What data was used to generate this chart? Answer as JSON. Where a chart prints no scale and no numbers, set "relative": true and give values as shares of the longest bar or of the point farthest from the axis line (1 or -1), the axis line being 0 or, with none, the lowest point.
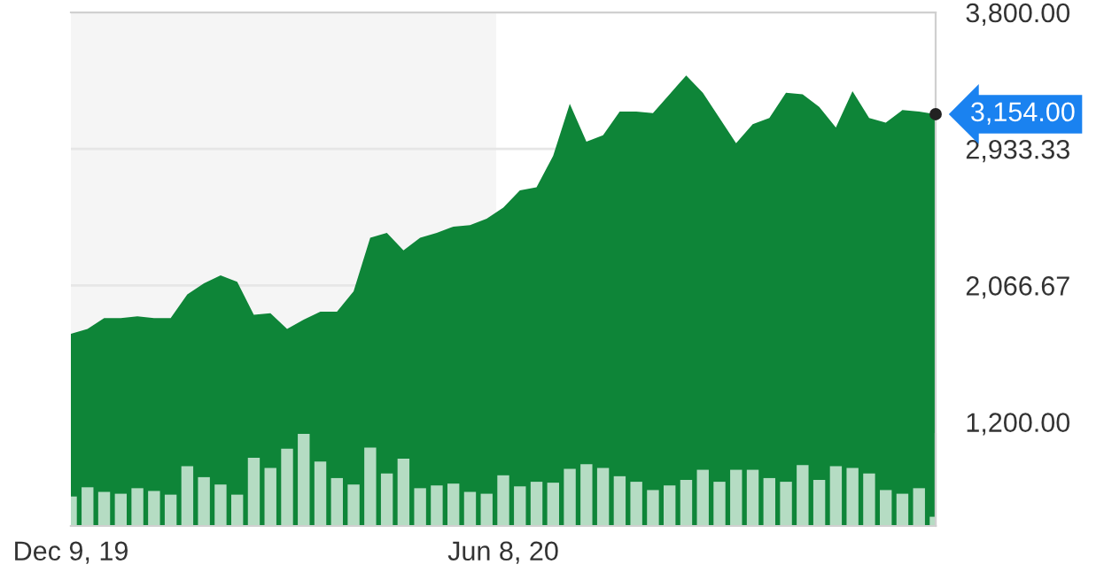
{
  "chart_data": [
    {
      "type": "area",
      "color": "#0e8538",
      "x": [
        "2019-12-09",
        "2019-12-16",
        "2019-12-23",
        "2019-12-30",
        "2020-01-06",
        "2020-01-13",
        "2020-01-20",
        "2020-01-27",
        "2020-02-03",
        "2020-02-10",
        "2020-02-17",
        "2020-02-24",
        "2020-03-02",
        "2020-03-09",
        "2020-03-16",
        "2020-03-23",
        "2020-03-30",
        "2020-04-06",
        "2020-04-13",
        "2020-04-20",
        "2020-04-27",
        "2020-05-04",
        "2020-05-11",
        "2020-05-18",
        "2020-05-25",
        "2020-06-01",
        "2020-06-08",
        "2020-06-15",
        "2020-06-22",
        "2020-06-29",
        "2020-07-06",
        "2020-07-13",
        "2020-07-20",
        "2020-07-27",
        "2020-08-03",
        "2020-08-10",
        "2020-08-17",
        "2020-08-24",
        "2020-08-31",
        "2020-09-07",
        "2020-09-14",
        "2020-09-21",
        "2020-09-28",
        "2020-10-05",
        "2020-10-12",
        "2020-10-19",
        "2020-10-26",
        "2020-11-02",
        "2020-11-09",
        "2020-11-16",
        "2020-11-23",
        "2020-11-30",
        "2020-12-07"
      ],
      "values": [
        1760,
        1790,
        1860,
        1860,
        1870,
        1860,
        1860,
        2010,
        2080,
        2130,
        2090,
        1880,
        1890,
        1790,
        1850,
        1900,
        1900,
        2030,
        2370,
        2400,
        2290,
        2370,
        2400,
        2440,
        2450,
        2490,
        2560,
        2670,
        2690,
        2890,
        3220,
        2980,
        3020,
        3170,
        3170,
        3160,
        3280,
        3400,
        3290,
        3130,
        2970,
        3090,
        3130,
        3290,
        3280,
        3200,
        3070,
        3300,
        3130,
        3100,
        3180,
        3170,
        3154
      ],
      "xlim": [
        "2019-12-09",
        "2020-12-07"
      ],
      "xticks": [
        {
          "value": "2019-12-09",
          "label": null
        },
        {
          "value": "2020-06-08",
          "label": null
        }
      ],
      "ylim": [
        540,
        3800
      ],
      "yticks": [
        {
          "value": 1200,
          "label": "1,200.00"
        },
        {
          "value": 2066.67,
          "label": "2,066.67"
        },
        {
          "value": 2933.33,
          "label": "2,933.33"
        },
        {
          "value": 3800,
          "label": "3,800.00"
        }
      ],
      "grid": "y",
      "tick_labels": "y",
      "bands": [
        {
          "axis": "x",
          "from": "2019-12-09",
          "to": "2020-06-05",
          "color": "#f5f5f5"
        }
      ],
      "annotations": [
        {
          "text": "3,154.00",
          "x": "2020-12-07",
          "y": 3154
        }
      ]
    },
    {
      "type": "bar",
      "color": "#b5dcc3",
      "relative": true,
      "tick_labels": "x",
      "xlim": [
        "2019-12-09",
        "2020-12-07"
      ],
      "xticks": [
        {
          "value": "2019-12-09",
          "label": "Dec 9, 19"
        },
        {
          "value": "2020-06-08",
          "label": "Jun 8, 20"
        }
      ],
      "x": [
        "2019-12-09",
        "2019-12-16",
        "2019-12-23",
        "2019-12-30",
        "2020-01-06",
        "2020-01-13",
        "2020-01-20",
        "2020-01-27",
        "2020-02-03",
        "2020-02-10",
        "2020-02-17",
        "2020-02-24",
        "2020-03-02",
        "2020-03-09",
        "2020-03-16",
        "2020-03-23",
        "2020-03-30",
        "2020-04-06",
        "2020-04-13",
        "2020-04-20",
        "2020-04-27",
        "2020-05-04",
        "2020-05-11",
        "2020-05-18",
        "2020-05-25",
        "2020-06-01",
        "2020-06-08",
        "2020-06-15",
        "2020-06-22",
        "2020-06-29",
        "2020-07-06",
        "2020-07-13",
        "2020-07-20",
        "2020-07-27",
        "2020-08-03",
        "2020-08-10",
        "2020-08-17",
        "2020-08-24",
        "2020-08-31",
        "2020-09-07",
        "2020-09-14",
        "2020-09-21",
        "2020-09-28",
        "2020-10-05",
        "2020-10-12",
        "2020-10-19",
        "2020-10-26",
        "2020-11-02",
        "2020-11-09",
        "2020-11-16",
        "2020-11-23",
        "2020-11-30",
        "2020-12-07"
      ],
      "values": [
        0.32,
        0.42,
        0.37,
        0.35,
        0.41,
        0.38,
        0.34,
        0.65,
        0.53,
        0.45,
        0.34,
        0.74,
        0.63,
        0.84,
        1,
        0.7,
        0.52,
        0.45,
        0.85,
        0.57,
        0.73,
        0.41,
        0.44,
        0.46,
        0.37,
        0.35,
        0.55,
        0.43,
        0.48,
        0.47,
        0.62,
        0.67,
        0.63,
        0.54,
        0.48,
        0.39,
        0.44,
        0.5,
        0.61,
        0.48,
        0.61,
        0.61,
        0.52,
        0.48,
        0.66,
        0.5,
        0.65,
        0.63,
        0.57,
        0.39,
        0.35,
        0.41,
        0.1
      ]
    }
  ]
}
